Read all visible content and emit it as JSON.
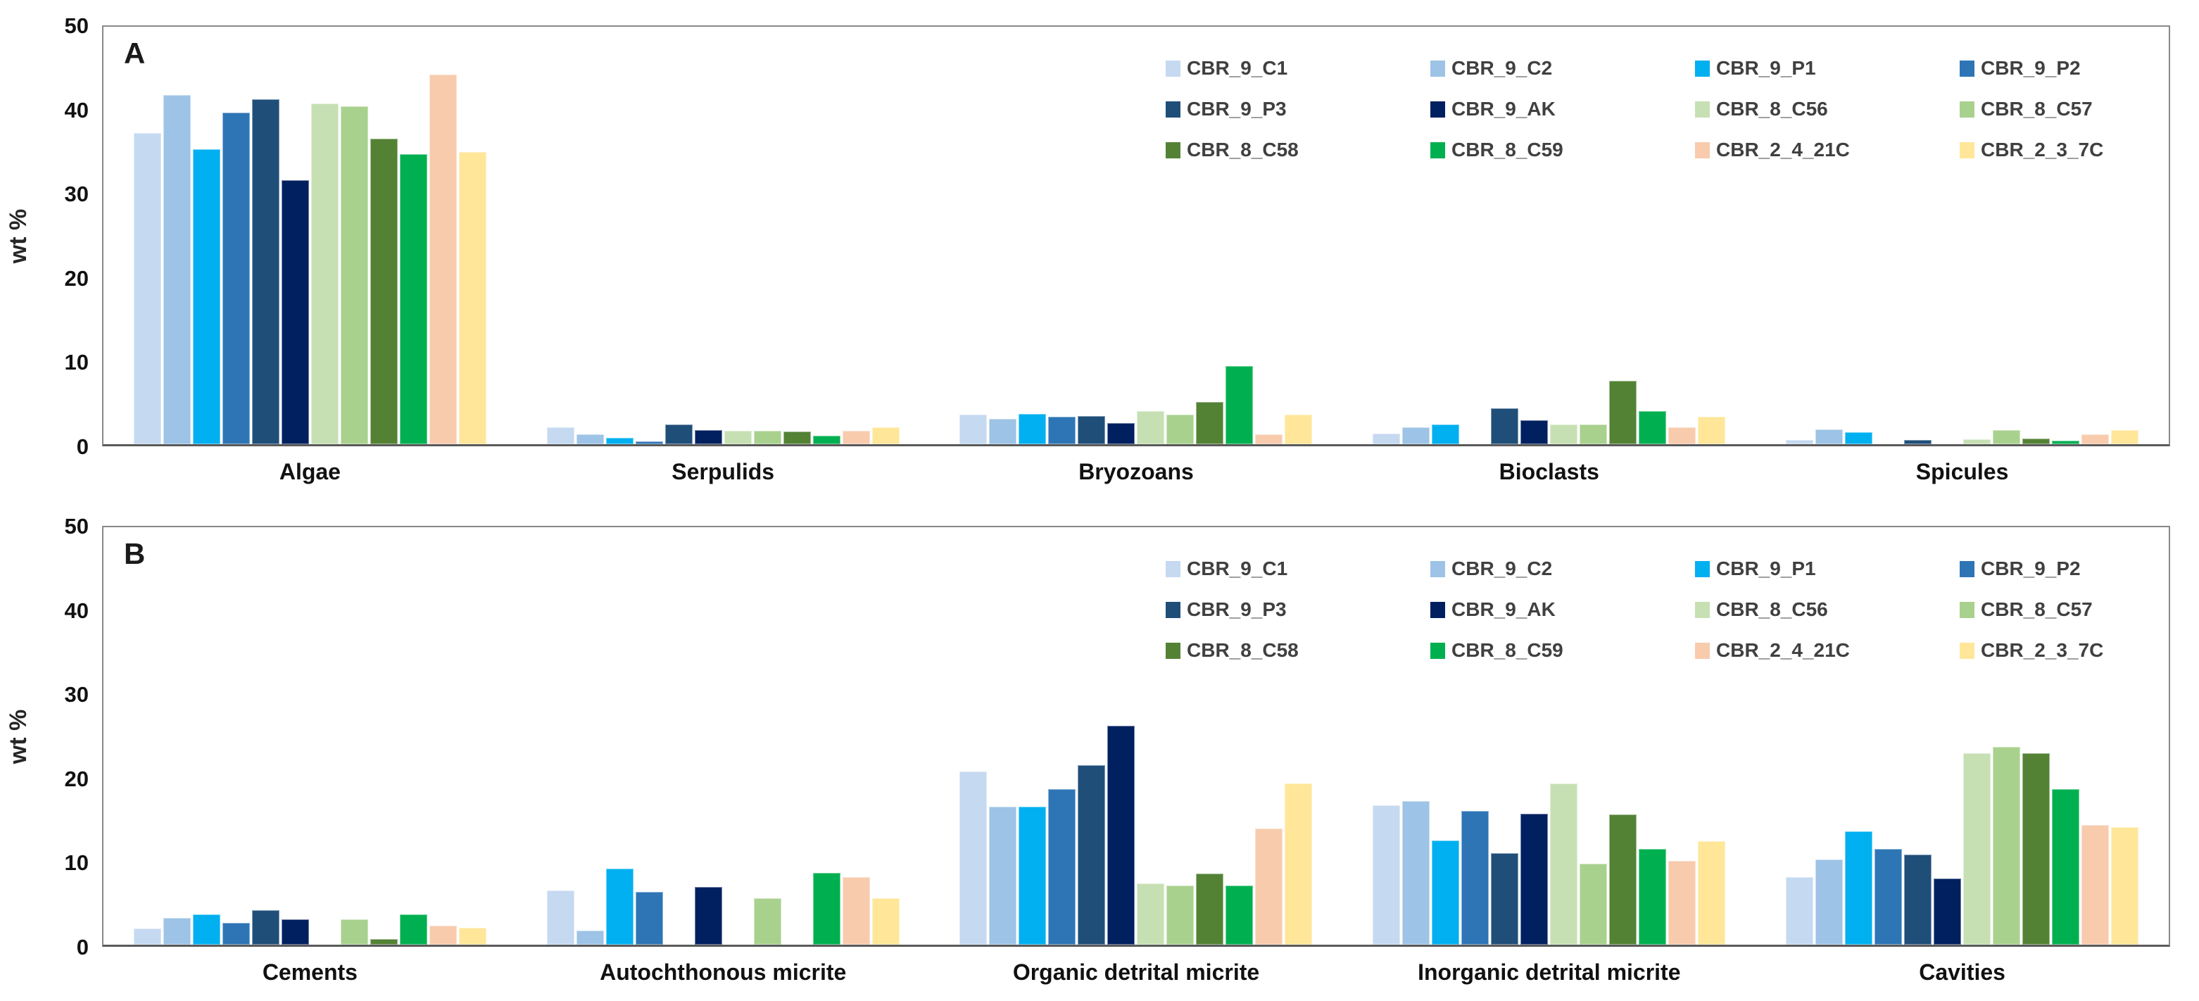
{
  "figure": {
    "background": "#ffffff",
    "axis_color": "#898989",
    "baseline_color": "#5a5a5a",
    "text_color": "#111111",
    "legend_text_color": "#404040"
  },
  "chart_data": [
    {
      "type": "bar",
      "panel_label": "A",
      "ylabel": "wt %",
      "ylim": [
        0,
        50
      ],
      "y_ticks": [
        0,
        10,
        20,
        30,
        40,
        50
      ],
      "grid": false,
      "legend_position": "top-right-inside",
      "categories": [
        "Algae",
        "Serpulids",
        "Bryozoans",
        "Bioclasts",
        "Spicules"
      ],
      "series": [
        {
          "name": "CBR_9_C1",
          "color": "#C5D9F1",
          "values": [
            37.3,
            2.0,
            3.5,
            1.3,
            0.5
          ]
        },
        {
          "name": "CBR_9_C2",
          "color": "#9DC3E6",
          "values": [
            41.8,
            1.2,
            3.0,
            2.0,
            1.8
          ]
        },
        {
          "name": "CBR_9_P1",
          "color": "#00B0F0",
          "values": [
            35.3,
            0.8,
            3.6,
            2.4,
            1.4
          ]
        },
        {
          "name": "CBR_9_P2",
          "color": "#2E75B6",
          "values": [
            39.7,
            0.3,
            3.3,
            0.0,
            0.0
          ]
        },
        {
          "name": "CBR_9_P3",
          "color": "#1F4E79",
          "values": [
            41.3,
            2.4,
            3.4,
            4.3,
            0.5
          ]
        },
        {
          "name": "CBR_9_AK",
          "color": "#002060",
          "values": [
            31.6,
            1.7,
            2.5,
            2.9,
            0.0
          ]
        },
        {
          "name": "CBR_8_C56",
          "color": "#C6E0B4",
          "values": [
            40.8,
            1.6,
            4.0,
            2.4,
            0.6
          ]
        },
        {
          "name": "CBR_8_C57",
          "color": "#A9D18E",
          "values": [
            40.5,
            1.6,
            3.5,
            2.4,
            1.7
          ]
        },
        {
          "name": "CBR_8_C58",
          "color": "#548235",
          "values": [
            36.6,
            1.5,
            5.1,
            7.6,
            0.7
          ]
        },
        {
          "name": "CBR_8_C59",
          "color": "#00B050",
          "values": [
            34.7,
            1.0,
            9.4,
            4.0,
            0.4
          ]
        },
        {
          "name": "CBR_2_4_21C",
          "color": "#F8CBAD",
          "values": [
            44.3,
            1.6,
            1.2,
            2.0,
            1.2
          ]
        },
        {
          "name": "CBR_2_3_7C",
          "color": "#FFE699",
          "values": [
            35.0,
            2.0,
            3.5,
            3.3,
            1.7
          ]
        }
      ]
    },
    {
      "type": "bar",
      "panel_label": "B",
      "ylabel": "wt %",
      "ylim": [
        0,
        50
      ],
      "y_ticks": [
        0,
        10,
        20,
        30,
        40,
        50
      ],
      "grid": false,
      "legend_position": "top-right-inside",
      "categories": [
        "Cements",
        "Autochthonous micrite",
        "Organic detrital micrite",
        "Inorganic detrital micrite",
        "Cavities"
      ],
      "series": [
        {
          "name": "CBR_9_C1",
          "color": "#C5D9F1",
          "values": [
            1.9,
            6.5,
            20.7,
            16.7,
            8.1
          ]
        },
        {
          "name": "CBR_9_C2",
          "color": "#9DC3E6",
          "values": [
            3.2,
            1.7,
            16.5,
            17.2,
            10.2
          ]
        },
        {
          "name": "CBR_9_P1",
          "color": "#00B0F0",
          "values": [
            3.6,
            9.1,
            16.5,
            12.5,
            13.6
          ]
        },
        {
          "name": "CBR_9_P2",
          "color": "#2E75B6",
          "values": [
            2.6,
            6.3,
            18.6,
            16.0,
            11.5
          ]
        },
        {
          "name": "CBR_9_P3",
          "color": "#1F4E79",
          "values": [
            4.1,
            0.0,
            21.5,
            11.0,
            10.8
          ]
        },
        {
          "name": "CBR_9_AK",
          "color": "#002060",
          "values": [
            3.0,
            6.9,
            26.2,
            15.7,
            7.9
          ]
        },
        {
          "name": "CBR_8_C56",
          "color": "#C6E0B4",
          "values": [
            0.0,
            0.0,
            7.3,
            19.3,
            22.9
          ]
        },
        {
          "name": "CBR_8_C57",
          "color": "#A9D18E",
          "values": [
            3.0,
            5.6,
            7.1,
            9.7,
            23.7
          ]
        },
        {
          "name": "CBR_8_C58",
          "color": "#548235",
          "values": [
            0.7,
            0.0,
            8.5,
            15.6,
            22.9
          ]
        },
        {
          "name": "CBR_8_C59",
          "color": "#00B050",
          "values": [
            3.6,
            8.6,
            7.1,
            11.5,
            18.6
          ]
        },
        {
          "name": "CBR_2_4_21C",
          "color": "#F8CBAD",
          "values": [
            2.3,
            8.1,
            13.9,
            10.0,
            14.3
          ]
        },
        {
          "name": "CBR_2_3_7C",
          "color": "#FFE699",
          "values": [
            2.0,
            5.6,
            19.3,
            12.4,
            14.1
          ]
        }
      ]
    }
  ]
}
